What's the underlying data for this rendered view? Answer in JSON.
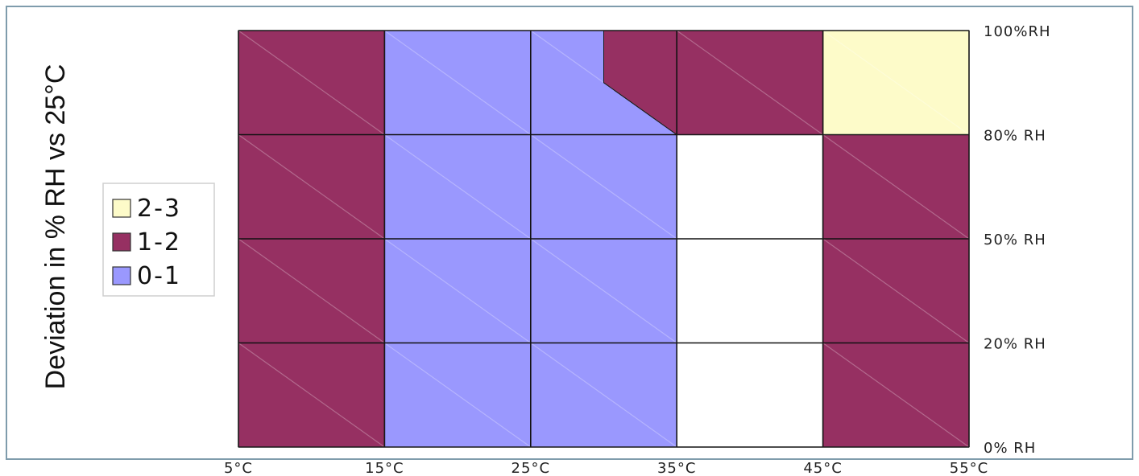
{
  "chart_data": {
    "type": "heatmap",
    "title": "",
    "ylabel": "Deviation in % RH vs 25°C",
    "x_tick_labels": [
      "5°C",
      "15°C",
      "25°C",
      "35°C",
      "45°C",
      "55°C"
    ],
    "y_tick_labels": [
      "0% RH",
      "20% RH",
      "50% RH",
      "80% RH",
      "100%RH"
    ],
    "x_edges": [
      5,
      15,
      25,
      35,
      45,
      55
    ],
    "y_edges": [
      0,
      20,
      50,
      80,
      100
    ],
    "legend": [
      {
        "label": "2-3",
        "color": "#fdfbc9"
      },
      {
        "label": "1-2",
        "color": "#963062"
      },
      {
        "label": "0-1",
        "color": "#9a98fe"
      }
    ],
    "regions": [
      {
        "class": "1-2",
        "polygon": [
          [
            5,
            0
          ],
          [
            15,
            0
          ],
          [
            15,
            100
          ],
          [
            5,
            100
          ]
        ]
      },
      {
        "class": "0-1",
        "polygon": [
          [
            15,
            0
          ],
          [
            35,
            0
          ],
          [
            35,
            80
          ],
          [
            30,
            90
          ],
          [
            30,
            100
          ],
          [
            15,
            100
          ]
        ]
      },
      {
        "class": "1-2",
        "polygon": [
          [
            30,
            90
          ],
          [
            35,
            80
          ],
          [
            45,
            80
          ],
          [
            45,
            0
          ],
          [
            55,
            0
          ],
          [
            55,
            80
          ],
          [
            45,
            80
          ],
          [
            45,
            100
          ],
          [
            30,
            100
          ]
        ]
      },
      {
        "class": "2-3",
        "polygon": [
          [
            45,
            80
          ],
          [
            55,
            80
          ],
          [
            55,
            100
          ],
          [
            45,
            100
          ]
        ]
      }
    ],
    "legend_position": "left",
    "grid": true
  }
}
